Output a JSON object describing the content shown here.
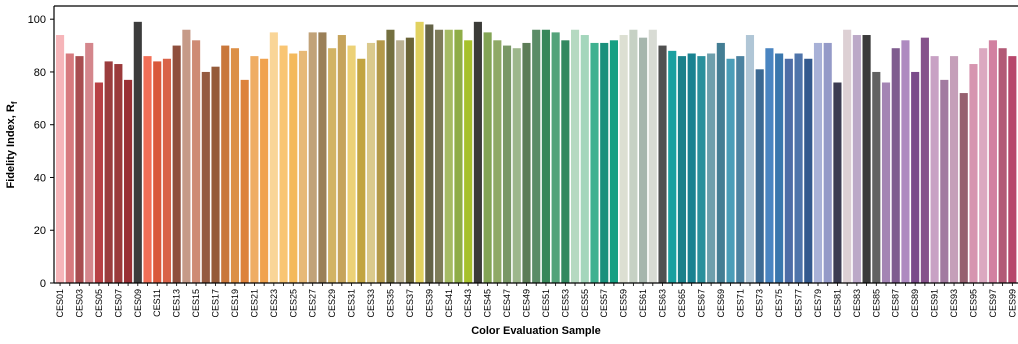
{
  "chart_data": {
    "type": "bar",
    "xlabel": "Color Evaluation Sample",
    "ylabel_main": "Fidelity Index, R",
    "ylabel_sub": "f",
    "ylim": [
      0,
      105
    ],
    "yticks": [
      0,
      20,
      40,
      60,
      80,
      100
    ],
    "grid": false,
    "legend": "none",
    "categories": [
      "CES01",
      "CES02",
      "CES03",
      "CES04",
      "CES05",
      "CES06",
      "CES07",
      "CES08",
      "CES09",
      "CES10",
      "CES11",
      "CES12",
      "CES13",
      "CES14",
      "CES15",
      "CES16",
      "CES17",
      "CES18",
      "CES19",
      "CES20",
      "CES21",
      "CES22",
      "CES23",
      "CES24",
      "CES25",
      "CES26",
      "CES27",
      "CES28",
      "CES29",
      "CES30",
      "CES31",
      "CES32",
      "CES33",
      "CES34",
      "CES35",
      "CES36",
      "CES37",
      "CES38",
      "CES39",
      "CES40",
      "CES41",
      "CES42",
      "CES43",
      "CES44",
      "CES45",
      "CES46",
      "CES47",
      "CES48",
      "CES49",
      "CES50",
      "CES51",
      "CES52",
      "CES53",
      "CES54",
      "CES55",
      "CES56",
      "CES57",
      "CES58",
      "CES59",
      "CES60",
      "CES61",
      "CES62",
      "CES63",
      "CES64",
      "CES65",
      "CES66",
      "CES67",
      "CES68",
      "CES69",
      "CES70",
      "CES71",
      "CES72",
      "CES73",
      "CES74",
      "CES75",
      "CES76",
      "CES77",
      "CES78",
      "CES79",
      "CES80",
      "CES81",
      "CES82",
      "CES83",
      "CES84",
      "CES85",
      "CES86",
      "CES87",
      "CES88",
      "CES89",
      "CES90",
      "CES91",
      "CES92",
      "CES93",
      "CES94",
      "CES95",
      "CES96",
      "CES97",
      "CES98",
      "CES99"
    ],
    "tick_labels": [
      "CES01",
      "CES03",
      "CES05",
      "CES07",
      "CES09",
      "CES11",
      "CES13",
      "CES15",
      "CES17",
      "CES19",
      "CES21",
      "CES23",
      "CES25",
      "CES27",
      "CES29",
      "CES31",
      "CES33",
      "CES35",
      "CES37",
      "CES39",
      "CES41",
      "CES43",
      "CES45",
      "CES47",
      "CES49",
      "CES51",
      "CES53",
      "CES55",
      "CES57",
      "CES59",
      "CES61",
      "CES63",
      "CES65",
      "CES67",
      "CES69",
      "CES71",
      "CES73",
      "CES75",
      "CES77",
      "CES79",
      "CES81",
      "CES83",
      "CES85",
      "CES87",
      "CES89",
      "CES91",
      "CES93",
      "CES95",
      "CES97",
      "CES99"
    ],
    "values": [
      94,
      87,
      86,
      91,
      76,
      84,
      83,
      77,
      99,
      86,
      84,
      85,
      90,
      96,
      92,
      80,
      82,
      90,
      89,
      77,
      86,
      85,
      95,
      90,
      87,
      88,
      95,
      95,
      89,
      94,
      90,
      85,
      91,
      92,
      96,
      92,
      93,
      99,
      98,
      96,
      96,
      96,
      92,
      99,
      95,
      92,
      90,
      89,
      91,
      96,
      96,
      95,
      92,
      96,
      94,
      91,
      91,
      92,
      94,
      96,
      93,
      96,
      90,
      88,
      86,
      87,
      86,
      87,
      91,
      85,
      86,
      94,
      81,
      89,
      87,
      85,
      87,
      85,
      91,
      91,
      76,
      96,
      94,
      94,
      80,
      76,
      89,
      92,
      80,
      93,
      86,
      77,
      86,
      72,
      83,
      89,
      92,
      89,
      86
    ],
    "colors": [
      "#f6b5b9",
      "#d77a7e",
      "#a84d50",
      "#d4868c",
      "#b84045",
      "#9b3d3e",
      "#9b3a3b",
      "#9a3035",
      "#3c3c3c",
      "#f26f57",
      "#d9583b",
      "#d96349",
      "#8f4f3d",
      "#c69a88",
      "#ce8b74",
      "#955a40",
      "#955b3a",
      "#c9773b",
      "#dc8f45",
      "#dd823b",
      "#efad64",
      "#f0a24e",
      "#f9d597",
      "#f9c573",
      "#f4b95b",
      "#e7b977",
      "#c1a278",
      "#9b8058",
      "#d2b364",
      "#c6a45c",
      "#ecd176",
      "#c2a440",
      "#dac98c",
      "#b3994a",
      "#747040",
      "#bab191",
      "#6b6537",
      "#e1d15f",
      "#646346",
      "#7e7c58",
      "#a6bb64",
      "#8fad48",
      "#a7c12c",
      "#3b3b38",
      "#83a455",
      "#8fa966",
      "#799766",
      "#9db78c",
      "#5d7d57",
      "#5b8c67",
      "#38875a",
      "#53a37a",
      "#328860",
      "#b5d9c1",
      "#a4d6bc",
      "#3fb190",
      "#19907b",
      "#16a083",
      "#dcdfd2",
      "#c6d1c4",
      "#a6b6ad",
      "#d8dbd4",
      "#505050",
      "#1aa0a0",
      "#1a818b",
      "#198291",
      "#2a909c",
      "#6e9fac",
      "#447e94",
      "#4a9db8",
      "#4b82a0",
      "#b0c6d6",
      "#3b6993",
      "#4a85c1",
      "#3a77ad",
      "#4e6da6",
      "#4f74aa",
      "#33598e",
      "#a8b1d7",
      "#949ac8",
      "#3c3c52",
      "#ddd0d4",
      "#bca9c8",
      "#3b3b3b",
      "#626262",
      "#a485b4",
      "#7f5c8f",
      "#ae8ac0",
      "#7a4b8a",
      "#86528b",
      "#c8a1c4",
      "#a27aa0",
      "#c59fb9",
      "#966070",
      "#d695b0",
      "#dba8c0",
      "#d281a1",
      "#b25a76",
      "#b7466b"
    ]
  }
}
